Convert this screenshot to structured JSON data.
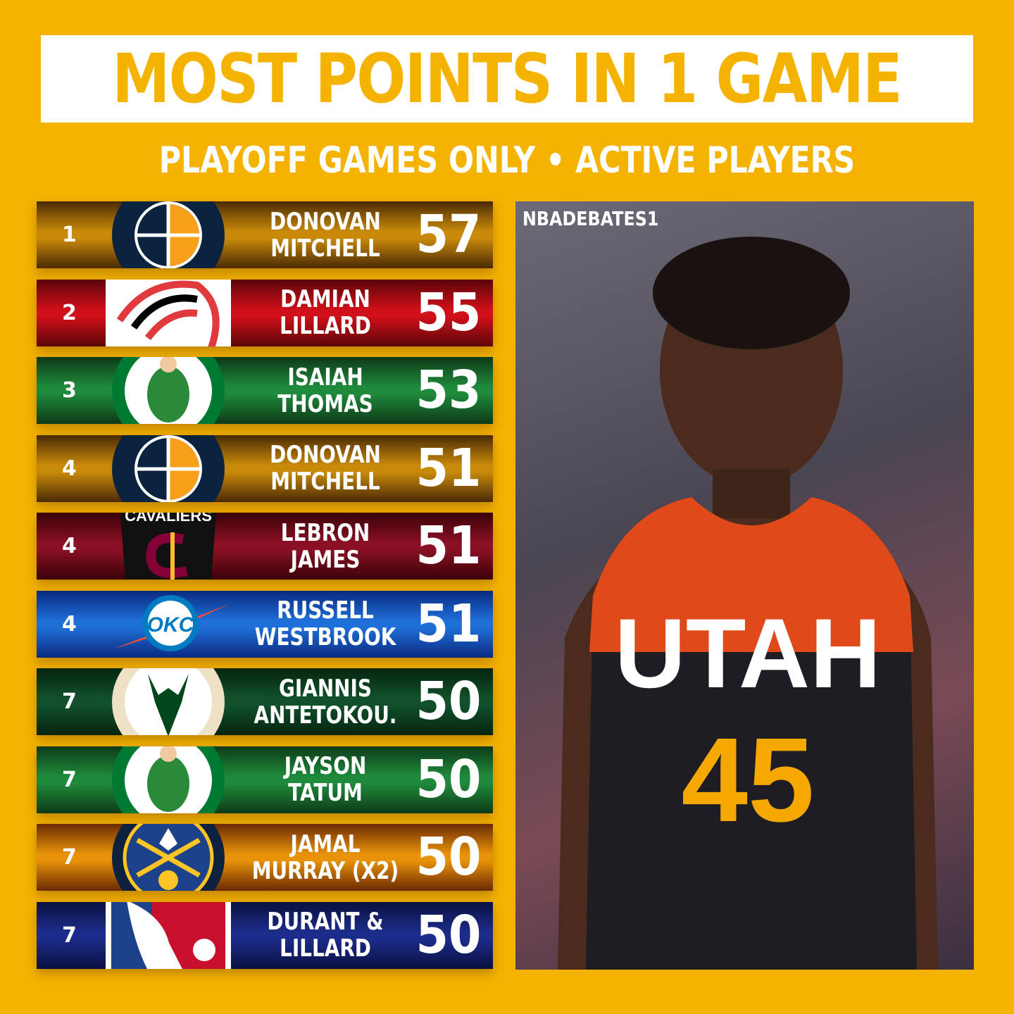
{
  "title": "MOST POINTS IN 1 GAME",
  "subtitle": "PLAYOFF GAMES ONLY • ACTIVE PLAYERS",
  "rows": [
    {
      "rank": "1",
      "line1": "DONOVAN",
      "line2": "MITCHELL",
      "points": "57",
      "team": "jazz",
      "colors": [
        "#4a2a05",
        "#C98A0A",
        "#4a2a05"
      ]
    },
    {
      "rank": "2",
      "line1": "DAMIAN",
      "line2": "LILLARD",
      "points": "55",
      "team": "blazers",
      "colors": [
        "#5a0508",
        "#D0101A",
        "#5a0508"
      ]
    },
    {
      "rank": "3",
      "line1": "ISAIAH",
      "line2": "THOMAS",
      "points": "53",
      "team": "celtics",
      "colors": [
        "#0d3a18",
        "#1F8A3B",
        "#0d3a18"
      ]
    },
    {
      "rank": "4",
      "line1": "DONOVAN",
      "line2": "MITCHELL",
      "points": "51",
      "team": "jazz",
      "colors": [
        "#4a2a05",
        "#C98A0A",
        "#4a2a05"
      ]
    },
    {
      "rank": "4",
      "line1": "LEBRON",
      "line2": "JAMES",
      "points": "51",
      "team": "cavaliers",
      "colors": [
        "#3a0208",
        "#8A1025",
        "#3a0208"
      ]
    },
    {
      "rank": "4",
      "line1": "RUSSELL",
      "line2": "WESTBROOK",
      "points": "51",
      "team": "thunder",
      "colors": [
        "#0a2a80",
        "#1E6FD8",
        "#0a2a80"
      ]
    },
    {
      "rank": "7",
      "line1": "GIANNIS",
      "line2": "ANTETOKOU.",
      "points": "50",
      "team": "bucks",
      "colors": [
        "#05240f",
        "#11502A",
        "#05240f"
      ]
    },
    {
      "rank": "7",
      "line1": "JAYSON",
      "line2": "TATUM",
      "points": "50",
      "team": "celtics",
      "colors": [
        "#0d3a18",
        "#1F8A3B",
        "#0d3a18"
      ]
    },
    {
      "rank": "7",
      "line1": "JAMAL",
      "line2": "MURRAY (X2)",
      "points": "50",
      "team": "nuggets",
      "colors": [
        "#6a2a02",
        "#E8920A",
        "#6a2a02"
      ]
    },
    {
      "rank": "7",
      "line1": "DURANT &",
      "line2": "LILLARD",
      "points": "50",
      "team": "nba",
      "colors": [
        "#0a1040",
        "#1C2C8A",
        "#0a1040"
      ]
    }
  ],
  "photo": {
    "watermark": "NBADEBATES1",
    "jersey_text": "UTAH",
    "jersey_number": "45"
  },
  "colors": {
    "background": "#F5B301",
    "title_box": "#FFFFFF"
  }
}
